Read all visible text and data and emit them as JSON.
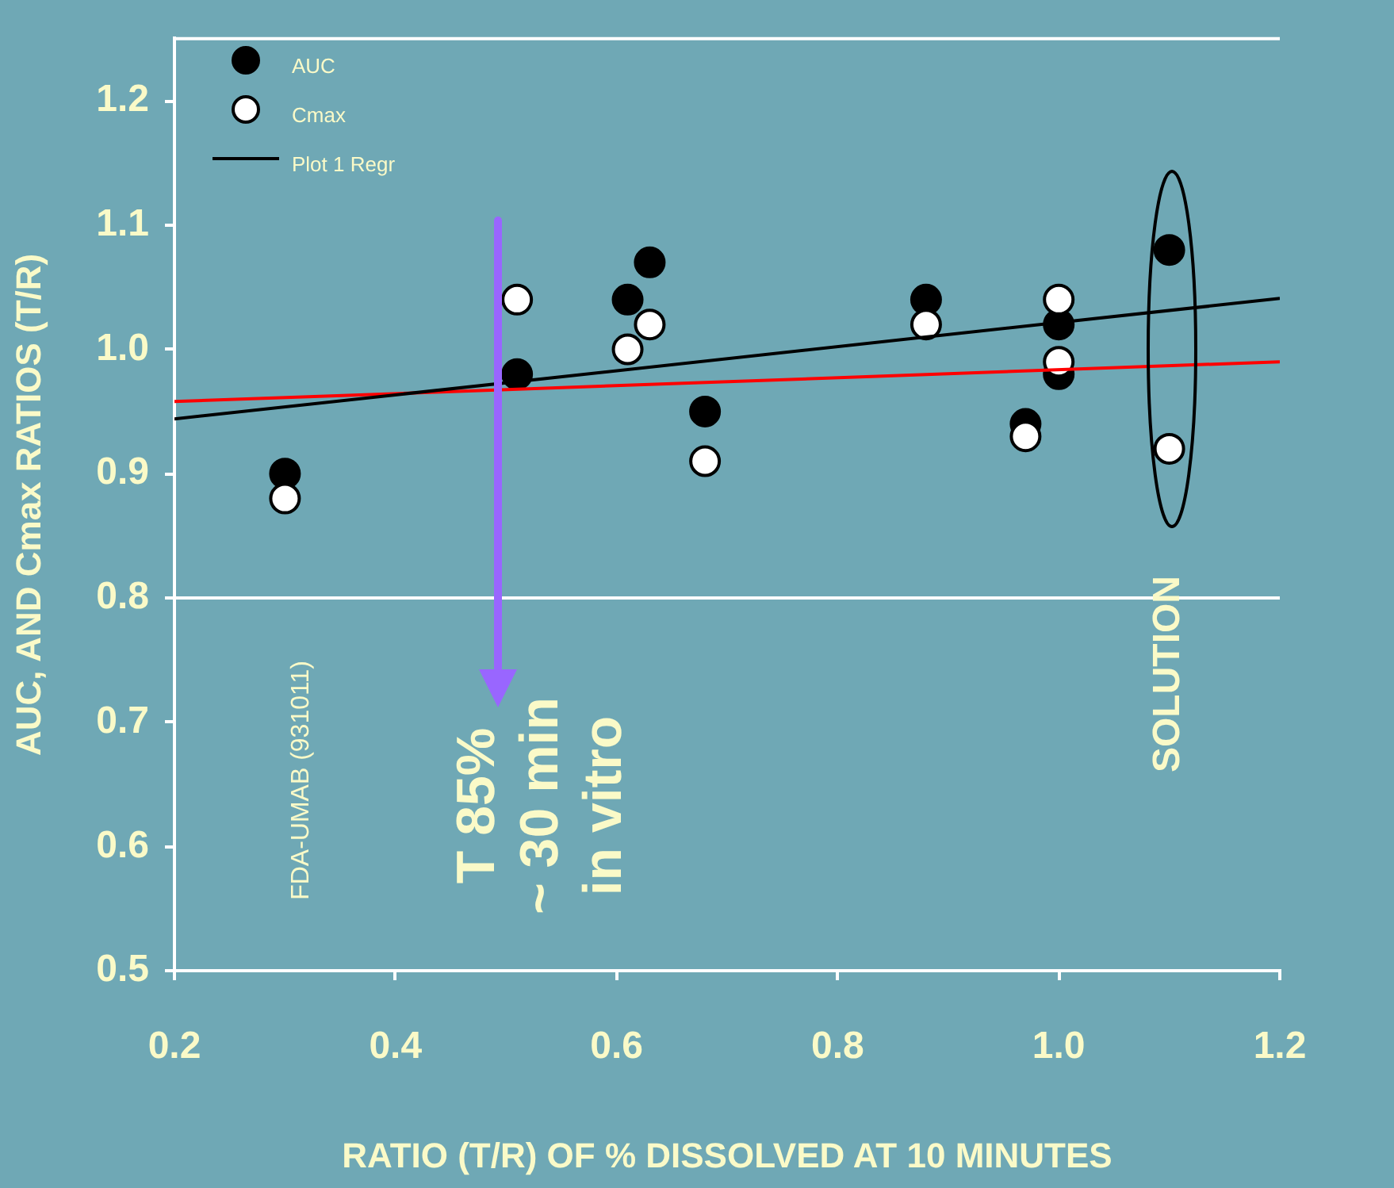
{
  "chart_data": {
    "type": "scatter",
    "xlabel": "RATIO (T/R) OF % DISSOLVED AT 10 MINUTES",
    "ylabel": "AUC, AND Cmax RATIOS (T/R)",
    "xlim": [
      0.2,
      1.2
    ],
    "xticks": [
      0.2,
      0.4,
      0.6,
      0.8,
      {
        "value": 1.0,
        "label": "1.0"
      },
      1.2
    ],
    "ylim": [
      0.5,
      1.25
    ],
    "yticks": [
      0.5,
      0.6,
      0.7,
      0.8,
      0.9,
      {
        "value": 1.0,
        "label": "1.0"
      },
      1.1,
      1.2
    ],
    "grid": false,
    "legend": "top left",
    "series": [
      {
        "name": "AUC",
        "marker": "circle",
        "color": "#000000",
        "x": [
          0.3,
          0.51,
          0.61,
          0.63,
          0.68,
          0.88,
          0.97,
          1.0,
          1.0,
          1.1
        ],
        "values": [
          0.9,
          0.98,
          1.04,
          1.07,
          0.95,
          1.04,
          0.94,
          1.02,
          0.98,
          1.08
        ]
      },
      {
        "name": "Cmax",
        "marker": "circle",
        "color": "#ffffff",
        "x": [
          0.3,
          0.51,
          0.61,
          0.63,
          0.68,
          0.88,
          0.97,
          1.0,
          1.0,
          1.1
        ],
        "values": [
          0.88,
          1.04,
          1.0,
          1.02,
          0.91,
          1.02,
          0.93,
          1.04,
          0.99,
          0.92
        ]
      },
      {
        "name": "Plot 1 Regr",
        "type": "line",
        "marker": "none",
        "line_style": "solid",
        "color": "#000000",
        "x": [
          0.2,
          1.2
        ],
        "values": [
          0.944,
          1.041
        ]
      },
      {
        "type": "line",
        "marker": "none",
        "line_style": "solid",
        "color": "#ff0000",
        "x": [
          0.2,
          1.2
        ],
        "values": [
          0.958,
          0.99
        ]
      }
    ],
    "ref_lines": [
      {
        "axis": "y",
        "value": 0.8,
        "color": "#ffffff"
      }
    ],
    "annotations": [
      "FDA-UMAB (931011)",
      "T 85%\n~ 30 min\nin vitro",
      "SOLUTION"
    ]
  }
}
